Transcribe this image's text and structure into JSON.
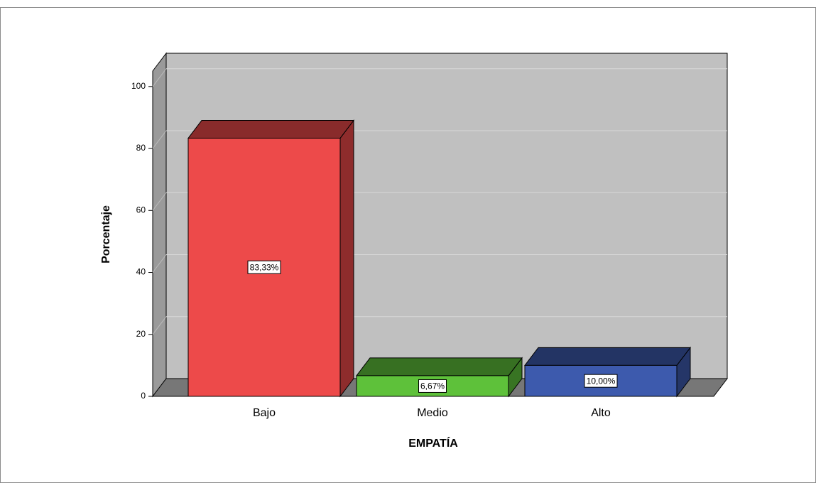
{
  "chart_data": {
    "type": "bar3d",
    "x_label": "EMPATÍA",
    "y_label": "Porcentaje",
    "categories": [
      "Bajo",
      "Medio",
      "Alto"
    ],
    "values": [
      83.33,
      6.67,
      10.0
    ],
    "value_labels": [
      "83,33%",
      "6,67%",
      "10,00%"
    ],
    "colors": [
      "#ed4a4a",
      "#5ec13a",
      "#3d5aad"
    ],
    "ylim": [
      0,
      105
    ],
    "yticks": [
      0,
      20,
      40,
      60,
      80,
      100
    ],
    "grid": true
  }
}
